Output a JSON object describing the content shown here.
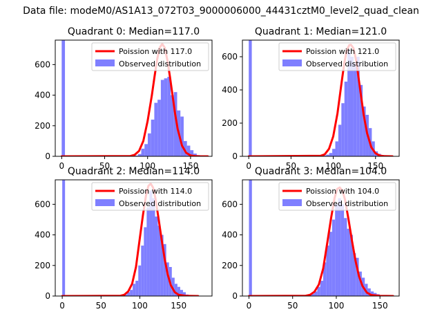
{
  "suptitle": "Data file: modeM0/AS1A13_072T03_9000006000_44431cztM0_level2_quad_clean",
  "colors": {
    "fit": "#ff0000",
    "observed": "#7f7fff",
    "axes": "#000000",
    "legend_edge": "#cccccc"
  },
  "chart_data": [
    {
      "type": "bar",
      "title": "Quadrant 0: Median=117.0",
      "xticks": [
        0,
        50,
        100,
        150
      ],
      "yticks": [
        0,
        200,
        400,
        600
      ],
      "xlim": [
        -7.5,
        175
      ],
      "ylim": [
        0,
        760
      ],
      "legend_position": "upper right",
      "series": [
        {
          "name": "Poission with 117.0",
          "kind": "line",
          "mean": 117.0,
          "x": [
            0,
            80,
            85,
            90,
            95,
            100,
            105,
            108,
            111,
            114,
            117,
            120,
            123,
            126,
            129,
            132,
            135,
            140,
            145,
            150,
            155,
            160,
            170
          ],
          "y": [
            0,
            2,
            10,
            35,
            100,
            230,
            400,
            520,
            630,
            710,
            735,
            710,
            630,
            520,
            400,
            280,
            180,
            70,
            22,
            6,
            2,
            0,
            0
          ]
        },
        {
          "name": "Observed distribution",
          "kind": "hist",
          "bin_width": 3.8,
          "x": [
            0,
            85,
            88.8,
            92.6,
            96.4,
            100.2,
            104,
            107.8,
            111.6,
            115.4,
            119.2,
            123,
            126.8,
            130.6,
            134.4,
            138.2,
            142,
            145.8,
            149.6,
            153.4,
            157.2,
            161
          ],
          "y": [
            760,
            5,
            15,
            50,
            80,
            150,
            240,
            350,
            370,
            500,
            510,
            520,
            400,
            420,
            300,
            260,
            100,
            70,
            40,
            18,
            8,
            3
          ]
        }
      ]
    },
    {
      "type": "bar",
      "title": "Quadrant 1: Median=121.0",
      "xticks": [
        0,
        50,
        100,
        150
      ],
      "yticks": [
        0,
        200,
        400,
        600
      ],
      "xlim": [
        -7.5,
        178
      ],
      "ylim": [
        0,
        700
      ],
      "legend_position": "upper right",
      "series": [
        {
          "name": "Poission with 121.0",
          "kind": "line",
          "mean": 121.0,
          "x": [
            0,
            85,
            90,
            95,
            100,
            105,
            110,
            113,
            116,
            119,
            121,
            124,
            127,
            130,
            133,
            136,
            140,
            145,
            150,
            155,
            160,
            170
          ],
          "y": [
            0,
            3,
            12,
            45,
            120,
            260,
            450,
            560,
            640,
            670,
            672,
            650,
            580,
            470,
            360,
            250,
            140,
            55,
            18,
            5,
            1,
            0
          ]
        },
        {
          "name": "Observed distribution",
          "kind": "hist",
          "bin_width": 3.6,
          "x": [
            0,
            88,
            91.6,
            95.2,
            98.8,
            102.4,
            106,
            109.6,
            113.2,
            116.8,
            120.4,
            124,
            127.6,
            131.2,
            134.8,
            138.4,
            142,
            145.6,
            149.2,
            152.8,
            156.4,
            160
          ],
          "y": [
            700,
            5,
            10,
            20,
            45,
            90,
            190,
            320,
            450,
            640,
            600,
            560,
            600,
            430,
            300,
            250,
            170,
            90,
            30,
            15,
            8,
            2
          ]
        }
      ]
    },
    {
      "type": "bar",
      "title": "Quadrant 2: Median=114.0",
      "xticks": [
        0,
        50,
        100,
        150
      ],
      "yticks": [
        0,
        200,
        400,
        600
      ],
      "xlim": [
        -9,
        193
      ],
      "ylim": [
        0,
        760
      ],
      "legend_position": "upper right",
      "series": [
        {
          "name": "Poission with 114.0",
          "kind": "line",
          "mean": 114.0,
          "x": [
            0,
            75,
            80,
            85,
            90,
            95,
            100,
            104,
            108,
            111,
            114,
            117,
            120,
            124,
            128,
            132,
            136,
            140,
            145,
            150,
            160,
            175
          ],
          "y": [
            0,
            2,
            8,
            30,
            80,
            190,
            380,
            530,
            660,
            720,
            735,
            710,
            640,
            510,
            370,
            240,
            140,
            70,
            25,
            8,
            1,
            0
          ]
        },
        {
          "name": "Observed distribution",
          "kind": "hist",
          "bin_width": 3.6,
          "x": [
            0,
            80,
            83.6,
            87.2,
            90.8,
            94.4,
            98,
            101.6,
            105.2,
            108.8,
            112.4,
            116,
            119.6,
            123.2,
            126.8,
            130.4,
            134,
            137.6,
            141.2,
            144.8,
            148.4,
            152,
            155.6,
            159.2,
            162.8
          ],
          "y": [
            760,
            10,
            25,
            40,
            80,
            100,
            200,
            330,
            450,
            580,
            690,
            640,
            520,
            460,
            400,
            340,
            220,
            190,
            120,
            80,
            60,
            40,
            25,
            10,
            5
          ]
        }
      ]
    },
    {
      "type": "bar",
      "title": "Quadrant 3: Median=104.0",
      "xticks": [
        0,
        50,
        100,
        150
      ],
      "yticks": [
        0,
        200,
        400,
        600
      ],
      "xlim": [
        -7.5,
        172
      ],
      "ylim": [
        0,
        760
      ],
      "legend_position": "upper right",
      "series": [
        {
          "name": "Poission with 104.0",
          "kind": "line",
          "mean": 104.0,
          "x": [
            0,
            65,
            70,
            75,
            80,
            85,
            90,
            94,
            98,
            101,
            104,
            107,
            110,
            114,
            118,
            122,
            126,
            130,
            135,
            140,
            150,
            165
          ],
          "y": [
            0,
            2,
            8,
            28,
            75,
            180,
            360,
            510,
            640,
            700,
            710,
            690,
            630,
            500,
            360,
            230,
            130,
            65,
            22,
            7,
            1,
            0
          ]
        },
        {
          "name": "Observed distribution",
          "kind": "hist",
          "bin_width": 3.4,
          "x": [
            0,
            68,
            71.4,
            74.8,
            78.2,
            81.6,
            85,
            88.4,
            91.8,
            95.2,
            98.6,
            102,
            105.4,
            108.8,
            112.2,
            115.6,
            119,
            122.4,
            125.8,
            129.2,
            132.6,
            136,
            139.4,
            142.8,
            146.2,
            149.6,
            153
          ],
          "y": [
            760,
            5,
            15,
            30,
            60,
            100,
            220,
            330,
            420,
            500,
            600,
            640,
            600,
            510,
            440,
            400,
            280,
            250,
            160,
            120,
            80,
            50,
            30,
            20,
            12,
            6,
            3
          ]
        }
      ]
    }
  ]
}
